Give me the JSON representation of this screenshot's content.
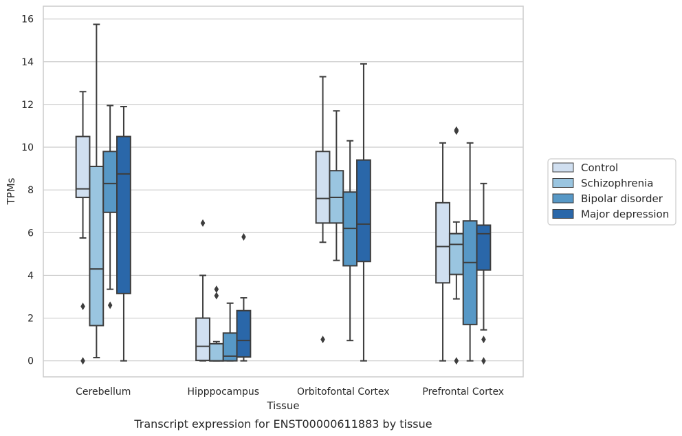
{
  "caption": "Transcript expression for ENST00000611883 by tissue",
  "chart_data": {
    "type": "box",
    "xlabel": "Tissue",
    "ylabel": "TPMs",
    "ylim": [
      -0.75,
      16.6
    ],
    "yticks": [
      0,
      2,
      4,
      6,
      8,
      10,
      12,
      14,
      16
    ],
    "grid": true,
    "legend_position": "right",
    "categories": [
      "Cerebellum",
      "Hipppocampus",
      "Orbitofontal Cortex",
      "Prefrontal Cortex"
    ],
    "series": [
      {
        "name": "Control",
        "color": "#d0dff0",
        "boxes": [
          {
            "q1": 7.65,
            "median": 8.05,
            "q3": 10.5,
            "whisker_low": 5.75,
            "whisker_high": 12.6,
            "outliers": [
              2.55,
              0.0
            ]
          },
          {
            "q1": 0.02,
            "median": 0.68,
            "q3": 2.0,
            "whisker_low": 0.0,
            "whisker_high": 4.0,
            "outliers": [
              6.45
            ]
          },
          {
            "q1": 6.45,
            "median": 7.6,
            "q3": 9.8,
            "whisker_low": 5.55,
            "whisker_high": 13.3,
            "outliers": [
              1.0
            ]
          },
          {
            "q1": 3.65,
            "median": 5.35,
            "q3": 7.4,
            "whisker_low": 0.0,
            "whisker_high": 10.2,
            "outliers": []
          }
        ]
      },
      {
        "name": "Schizophrenia",
        "color": "#9ac5e0",
        "boxes": [
          {
            "q1": 1.65,
            "median": 4.3,
            "q3": 9.1,
            "whisker_low": 0.15,
            "whisker_high": 15.75,
            "outliers": []
          },
          {
            "q1": 0.0,
            "median": 0.0,
            "q3": 0.8,
            "whisker_low": 0.0,
            "whisker_high": 0.9,
            "outliers": [
              3.35,
              3.05
            ]
          },
          {
            "q1": 6.45,
            "median": 7.65,
            "q3": 8.9,
            "whisker_low": 4.7,
            "whisker_high": 11.7,
            "outliers": []
          },
          {
            "q1": 4.05,
            "median": 5.45,
            "q3": 5.95,
            "whisker_low": 2.9,
            "whisker_high": 6.5,
            "outliers": [
              10.8,
              10.75,
              0.0
            ]
          }
        ]
      },
      {
        "name": "Bipolar disorder",
        "color": "#5798c6",
        "boxes": [
          {
            "q1": 6.95,
            "median": 8.3,
            "q3": 9.8,
            "whisker_low": 3.35,
            "whisker_high": 11.95,
            "outliers": [
              2.6
            ]
          },
          {
            "q1": 0.0,
            "median": 0.22,
            "q3": 1.3,
            "whisker_low": 0.0,
            "whisker_high": 2.7,
            "outliers": []
          },
          {
            "q1": 4.45,
            "median": 6.2,
            "q3": 7.9,
            "whisker_low": 0.95,
            "whisker_high": 10.3,
            "outliers": []
          },
          {
            "q1": 1.7,
            "median": 4.6,
            "q3": 6.55,
            "whisker_low": 0.0,
            "whisker_high": 10.2,
            "outliers": []
          }
        ]
      },
      {
        "name": "Major depression",
        "color": "#2a67a9",
        "boxes": [
          {
            "q1": 3.15,
            "median": 8.75,
            "q3": 10.5,
            "whisker_low": 0.0,
            "whisker_high": 11.9,
            "outliers": []
          },
          {
            "q1": 0.18,
            "median": 0.95,
            "q3": 2.35,
            "whisker_low": 0.0,
            "whisker_high": 2.95,
            "outliers": [
              5.8
            ]
          },
          {
            "q1": 4.65,
            "median": 6.4,
            "q3": 9.4,
            "whisker_low": 0.0,
            "whisker_high": 13.9,
            "outliers": []
          },
          {
            "q1": 4.25,
            "median": 5.95,
            "q3": 6.35,
            "whisker_low": 1.45,
            "whisker_high": 8.3,
            "outliers": [
              1.0,
              0.0
            ]
          }
        ]
      }
    ]
  }
}
